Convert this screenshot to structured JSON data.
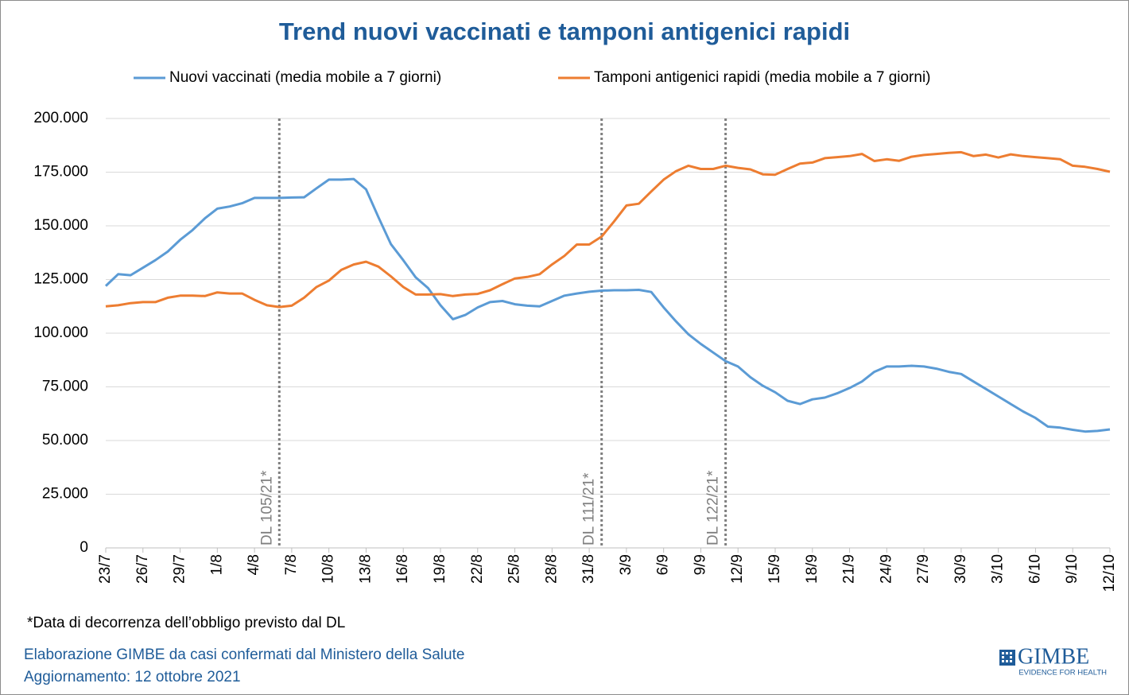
{
  "chart_data": {
    "type": "line",
    "title": "Trend nuovi vaccinati e tamponi antigenici rapidi",
    "categories": [
      "23/7",
      null,
      null,
      "26/7",
      null,
      null,
      "29/7",
      null,
      null,
      "1/8",
      null,
      null,
      "4/8",
      null,
      null,
      "7/8",
      null,
      null,
      "10/8",
      null,
      null,
      "13/8",
      null,
      null,
      "16/8",
      null,
      null,
      "19/8",
      null,
      null,
      "22/8",
      null,
      null,
      "25/8",
      null,
      null,
      "28/8",
      null,
      null,
      "31/8",
      null,
      null,
      "3/9",
      null,
      null,
      "6/9",
      null,
      null,
      "9/9",
      null,
      null,
      "12/9",
      null,
      null,
      "15/9",
      null,
      null,
      "18/9",
      null,
      null,
      "21/9",
      null,
      null,
      "24/9",
      null,
      null,
      "27/9",
      null,
      null,
      "30/9",
      null,
      null,
      "3/10",
      null,
      null,
      "6/10",
      null,
      null,
      "9/10",
      null,
      null,
      "12/10"
    ],
    "series": [
      {
        "name": "Nuovi vaccinati (media mobile a 7 giorni)",
        "color": "#5b9bd5",
        "values": [
          122000,
          127500,
          127000,
          130500,
          134000,
          138000,
          143500,
          148000,
          153500,
          158000,
          159000,
          160500,
          163000,
          163000,
          163000,
          163200,
          163300,
          167500,
          171500,
          171500,
          171800,
          167000,
          154000,
          141500,
          134000,
          126000,
          121000,
          113000,
          106500,
          108500,
          112000,
          114500,
          115000,
          113500,
          112800,
          112500,
          115000,
          117500,
          118500,
          119300,
          119800,
          120000,
          120000,
          120200,
          119200,
          112000,
          105500,
          99500,
          95000,
          91000,
          87000,
          84500,
          79500,
          75500,
          72500,
          68500,
          67000,
          69200,
          70000,
          72000,
          74500,
          77500,
          82000,
          84500,
          84500,
          84800,
          84500,
          83500,
          82000,
          81000,
          77500,
          74000,
          70500,
          67000,
          63500,
          60500,
          56500,
          56000,
          55000,
          54200,
          54500,
          55200
        ]
      },
      {
        "name": "Tamponi antigenici rapidi (media mobile a 7 giorni)",
        "color": "#ed7d31",
        "values": [
          112500,
          113000,
          114000,
          114500,
          114500,
          116500,
          117500,
          117500,
          117300,
          119000,
          118500,
          118500,
          115500,
          113000,
          112200,
          112800,
          116500,
          121500,
          124500,
          129500,
          132000,
          133300,
          131000,
          126500,
          121500,
          118000,
          118000,
          118200,
          117300,
          118000,
          118300,
          120000,
          122800,
          125500,
          126200,
          127500,
          132000,
          136000,
          141300,
          141300,
          145000,
          152000,
          159500,
          160300,
          166000,
          171500,
          175500,
          178000,
          176500,
          176500,
          178000,
          177000,
          176300,
          174000,
          173800,
          176500,
          179000,
          179500,
          181500,
          182000,
          182500,
          183500,
          180200,
          181000,
          180300,
          182200,
          183000,
          183500,
          184000,
          184300,
          182500,
          183200,
          181800,
          183300,
          182500,
          182000,
          181500,
          181000,
          178000,
          177500,
          176500,
          175200
        ]
      }
    ],
    "ylim": [
      0,
      200000
    ],
    "yticks": [
      0,
      {
        "value": 25000,
        "label": "25.000"
      },
      {
        "value": 50000,
        "label": "50.000"
      },
      {
        "value": 75000,
        "label": "75.000"
      },
      {
        "value": 100000,
        "label": "100.000"
      },
      {
        "value": 125000,
        "label": "125.000"
      },
      {
        "value": 150000,
        "label": "150.000"
      },
      {
        "value": 175000,
        "label": "175.000"
      },
      {
        "value": 200000,
        "label": "200.000"
      }
    ],
    "grid": true,
    "legend": "top",
    "annotations": [
      {
        "text": "DL 105/21*",
        "x": 14
      },
      {
        "text": "DL 111/21*",
        "x": 40
      },
      {
        "text": "DL 122/21*",
        "x": 50
      }
    ],
    "footnote": "*Data di decorrenza dell’obbligo previsto dal DL"
  },
  "footer": {
    "source": "Elaborazione GIMBE da casi confermati dal Ministero della Salute",
    "updated": "Aggiornamento: 12 ottobre 2021",
    "logo": "GIMBE",
    "tagline": "EVIDENCE FOR HEALTH"
  }
}
